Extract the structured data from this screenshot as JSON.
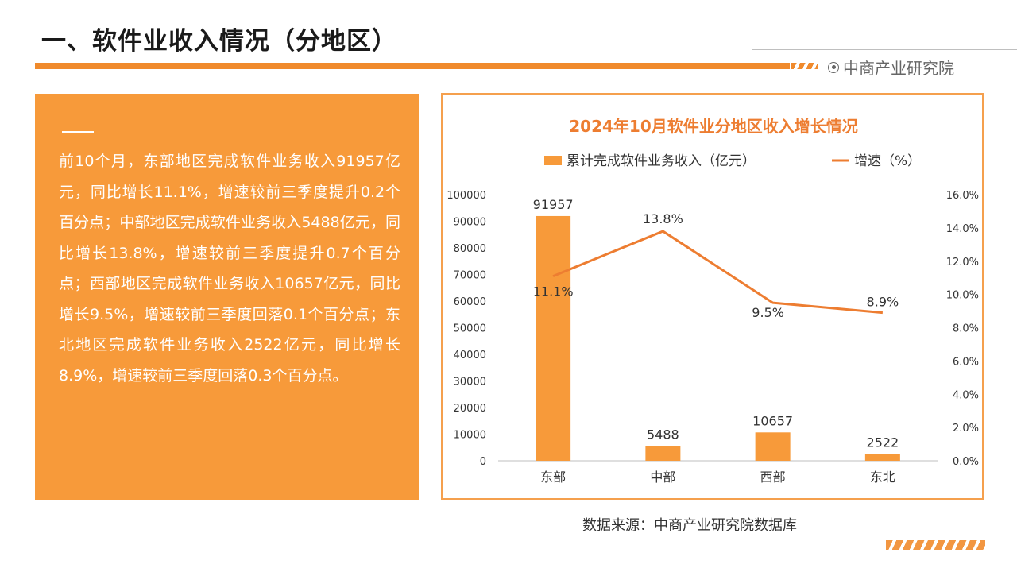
{
  "header": {
    "title": "一、软件业收入情况（分地区）",
    "brand": "中商产业研究院",
    "brand_icon": "target-icon",
    "accent_color": "#f08a2c"
  },
  "text_panel": {
    "body": "前10个月，东部地区完成软件业务收入91957亿元，同比增长11.1%，增速较前三季度提升0.2个百分点；中部地区完成软件业务收入5488亿元，同比增长13.8%，增速较前三季度提升0.7个百分点；西部地区完成软件业务收入10657亿元，同比增长9.5%，增速较前三季度回落0.1个百分点；东北地区完成软件业务收入2522亿元，同比增长8.9%，增速较前三季度回落0.3个百分点。",
    "background": "#f79a3a"
  },
  "chart_data": {
    "type": "bar",
    "title": "2024年10月软件业分地区收入增长情况",
    "categories": [
      "东部",
      "中部",
      "西部",
      "东北"
    ],
    "series": [
      {
        "name": "累计完成软件业务收入（亿元）",
        "type": "bar",
        "axis": "left",
        "values": [
          91957,
          5488,
          10657,
          2522
        ],
        "labels": [
          "91957",
          "5488",
          "10657",
          "2522"
        ],
        "color": "#f79a3a"
      },
      {
        "name": "增速（%）",
        "type": "line",
        "axis": "right",
        "values": [
          11.1,
          13.8,
          9.5,
          8.9
        ],
        "labels": [
          "11.1%",
          "13.8%",
          "9.5%",
          "8.9%"
        ],
        "color": "#ed7d31"
      }
    ],
    "y_left": {
      "range": [
        0,
        100000
      ],
      "ticks": [
        "0",
        "10000",
        "20000",
        "30000",
        "40000",
        "50000",
        "60000",
        "70000",
        "80000",
        "90000",
        "100000"
      ]
    },
    "y_right": {
      "range": [
        0,
        16
      ],
      "ticks": [
        "0.0%",
        "2.0%",
        "4.0%",
        "6.0%",
        "8.0%",
        "10.0%",
        "12.0%",
        "14.0%",
        "16.0%"
      ]
    },
    "legend_position": "top",
    "grid": false
  },
  "source": "数据来源：中商产业研究院数据库"
}
